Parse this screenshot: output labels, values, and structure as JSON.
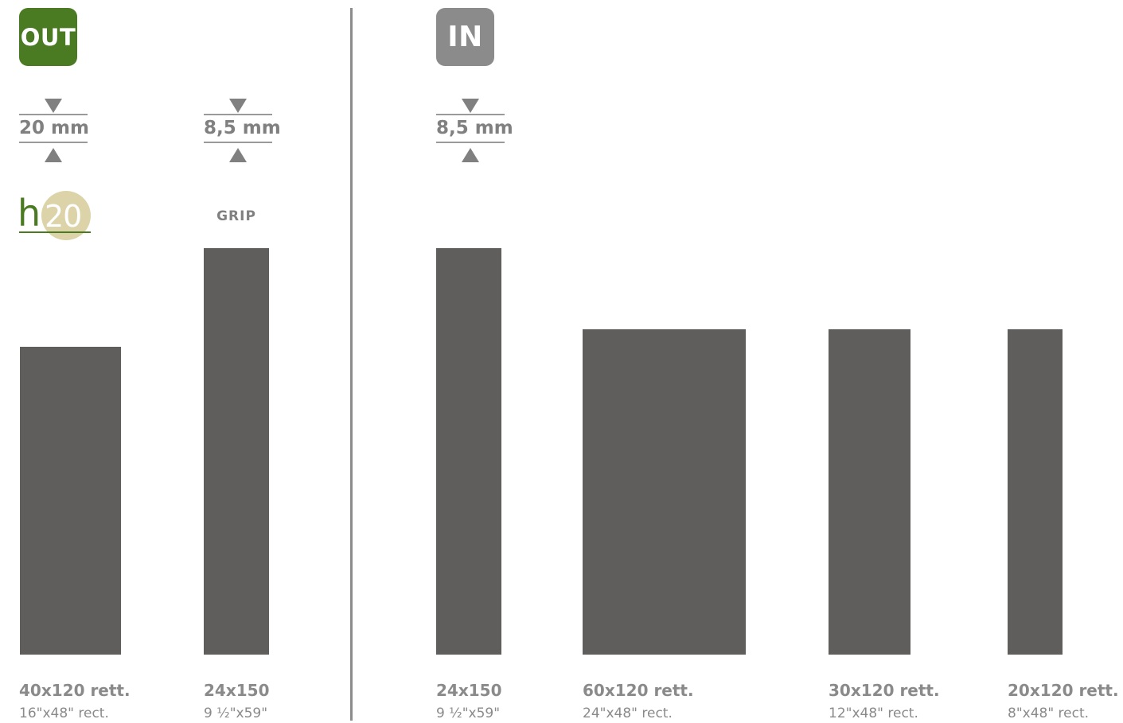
{
  "sections": {
    "out_label": "OUT",
    "in_label": "IN",
    "colors": {
      "out": "#4a7a21",
      "in": "#8b8b8b",
      "tile": "#5f5e5c",
      "text": "#8a8a8a",
      "h20_circle": "#dcd3a8"
    }
  },
  "thickness": {
    "out_h20": "20 mm",
    "out_grip": "8,5 mm",
    "in": "8,5 mm"
  },
  "h20_logo": {
    "letter": "h",
    "number": "20"
  },
  "grip_label": "GRIP",
  "tiles": [
    {
      "size": "40x120 rett.",
      "size_in": "16\"x48\" rect."
    },
    {
      "size": "24x150",
      "size_in": "9 ½\"x59\""
    },
    {
      "size": "24x150",
      "size_in": "9 ½\"x59\""
    },
    {
      "size": "60x120 rett.",
      "size_in": "24\"x48\" rect."
    },
    {
      "size": "30x120 rett.",
      "size_in": "12\"x48\" rect."
    },
    {
      "size": "20x120 rett.",
      "size_in": "8\"x48\" rect."
    }
  ]
}
